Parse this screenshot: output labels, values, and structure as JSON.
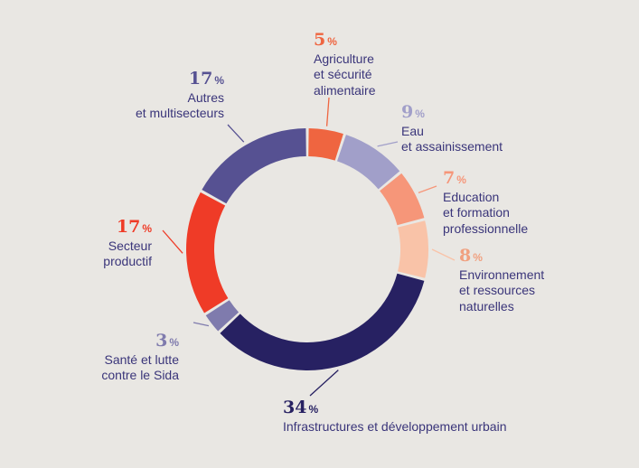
{
  "chart_data": {
    "type": "pie",
    "variant": "donut",
    "unit": "%",
    "slices": [
      {
        "value": 5,
        "label": [
          "Agriculture",
          "et sécurité",
          "alimentaire"
        ],
        "color": "#ef6540"
      },
      {
        "value": 9,
        "label": [
          "Eau",
          "et assainissement"
        ],
        "color": "#a19fc9"
      },
      {
        "value": 7,
        "label": [
          "Education",
          "et formation",
          "professionnelle"
        ],
        "color": "#f69679"
      },
      {
        "value": 8,
        "label": [
          "Environnement",
          "et ressources",
          "naturelles"
        ],
        "color": "#f9c3a8"
      },
      {
        "value": 34,
        "label": [
          "Infrastructures et développement urbain"
        ],
        "color": "#272162"
      },
      {
        "value": 3,
        "label": [
          "Santé et lutte",
          "contre le Sida"
        ],
        "color": "#7f7bad"
      },
      {
        "value": 17,
        "label": [
          "Secteur",
          "productif"
        ],
        "color": "#ef3b27"
      },
      {
        "value": 17,
        "label": [
          "Autres",
          "et multisecteurs"
        ],
        "color": "#565192"
      }
    ],
    "legend": "none"
  }
}
